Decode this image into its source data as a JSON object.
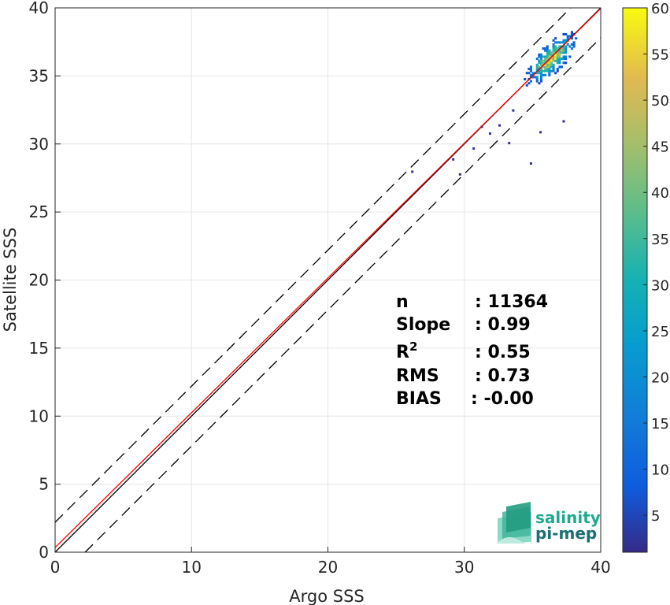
{
  "chart_data": {
    "type": "heatmap",
    "xlabel": "Argo SSS",
    "ylabel": "Satellite SSS",
    "xlim": [
      0,
      40
    ],
    "ylim": [
      0,
      40
    ],
    "xticks": [
      "0",
      "10",
      "20",
      "30",
      "40"
    ],
    "yticks": [
      "0",
      "5",
      "10",
      "15",
      "20",
      "25",
      "30",
      "35",
      "40"
    ],
    "grid": true,
    "colorbar": {
      "range": [
        1,
        60
      ],
      "ticks": [
        "5",
        "10",
        "15",
        "20",
        "25",
        "30",
        "35",
        "40",
        "45",
        "50",
        "55",
        "60"
      ],
      "colormap": "parula"
    },
    "reference_lines": [
      {
        "style": "solid",
        "color": "#000000",
        "slope": 1,
        "intercept": 0
      },
      {
        "style": "solid",
        "color": "#ff0000",
        "slope": 0.99,
        "intercept": 0.35
      },
      {
        "style": "dashed",
        "color": "#000000",
        "slope": 1,
        "intercept": 2.2
      },
      {
        "style": "dashed",
        "color": "#000000",
        "slope": 1,
        "intercept": -2.2
      }
    ],
    "density_center": {
      "x": 36.3,
      "y": 36.2
    },
    "statistics": [
      {
        "label": "n",
        "value": ": 11364"
      },
      {
        "label": "Slope",
        "value": ": 0.99"
      },
      {
        "label": "R",
        "sup": "2",
        "value": ": 0.55"
      },
      {
        "label": "RMS",
        "value": ": 0.73"
      },
      {
        "label": "BIAS",
        "value": ": -0.00"
      }
    ]
  },
  "logo": {
    "line1": "salinity",
    "line2": "pi-mep",
    "color": "#1fa98f"
  }
}
